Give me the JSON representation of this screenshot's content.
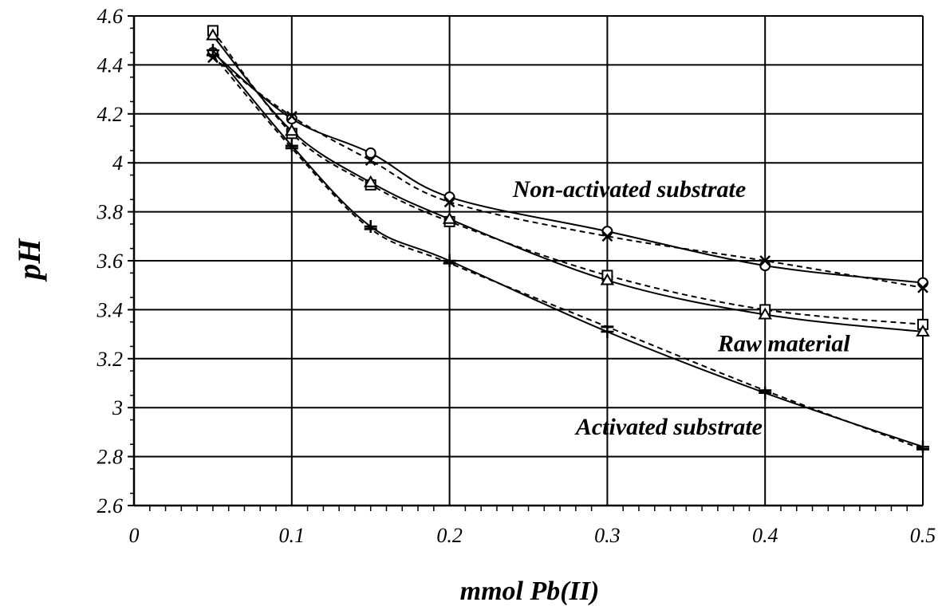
{
  "chart_data": {
    "type": "line",
    "xlabel": "mmol Pb(II)",
    "ylabel": "pH",
    "xlim": [
      0,
      0.5
    ],
    "ylim": [
      2.6,
      4.6
    ],
    "x_ticks": [
      0,
      0.1,
      0.2,
      0.3,
      0.4,
      0.5
    ],
    "x_tick_labels": [
      "0",
      "0.1",
      "0.2",
      "0.3",
      "0.4",
      "0.5"
    ],
    "y_ticks": [
      2.6,
      2.8,
      3.0,
      3.2,
      3.4,
      3.6,
      3.8,
      4.0,
      4.2,
      4.4,
      4.6
    ],
    "y_tick_labels": [
      "2.6",
      "2.8",
      "3",
      "3.2",
      "3.4",
      "3.6",
      "3.8",
      "4",
      "4.2",
      "4.4",
      "4.6"
    ],
    "grid": true,
    "x": [
      0.05,
      0.1,
      0.15,
      0.2,
      0.3,
      0.4,
      0.5
    ],
    "series": [
      {
        "marker": "circle",
        "style": "solid",
        "values": [
          4.45,
          4.18,
          4.04,
          3.86,
          3.72,
          3.58,
          3.51
        ]
      },
      {
        "marker": "x",
        "style": "dashed",
        "values": [
          4.43,
          4.19,
          4.01,
          3.84,
          3.7,
          3.6,
          3.49
        ]
      },
      {
        "marker": "square",
        "style": "dashed",
        "values": [
          4.54,
          4.12,
          3.91,
          3.76,
          3.54,
          3.4,
          3.34
        ]
      },
      {
        "marker": "triangle",
        "style": "solid",
        "values": [
          4.52,
          4.13,
          3.92,
          3.77,
          3.52,
          3.38,
          3.31
        ]
      },
      {
        "marker": "plus",
        "style": "solid",
        "values": [
          4.46,
          4.07,
          3.74,
          3.6,
          3.31,
          3.06,
          2.84
        ]
      },
      {
        "marker": "dash",
        "style": "dashed",
        "values": [
          4.44,
          4.06,
          3.73,
          3.59,
          3.33,
          3.07,
          2.83
        ]
      }
    ],
    "annotations": [
      {
        "text": "Non-activated substrate",
        "x": 0.24,
        "y": 3.86
      },
      {
        "text": "Raw material",
        "x": 0.37,
        "y": 3.23
      },
      {
        "text": "Activated substrate",
        "x": 0.28,
        "y": 2.89
      }
    ]
  }
}
